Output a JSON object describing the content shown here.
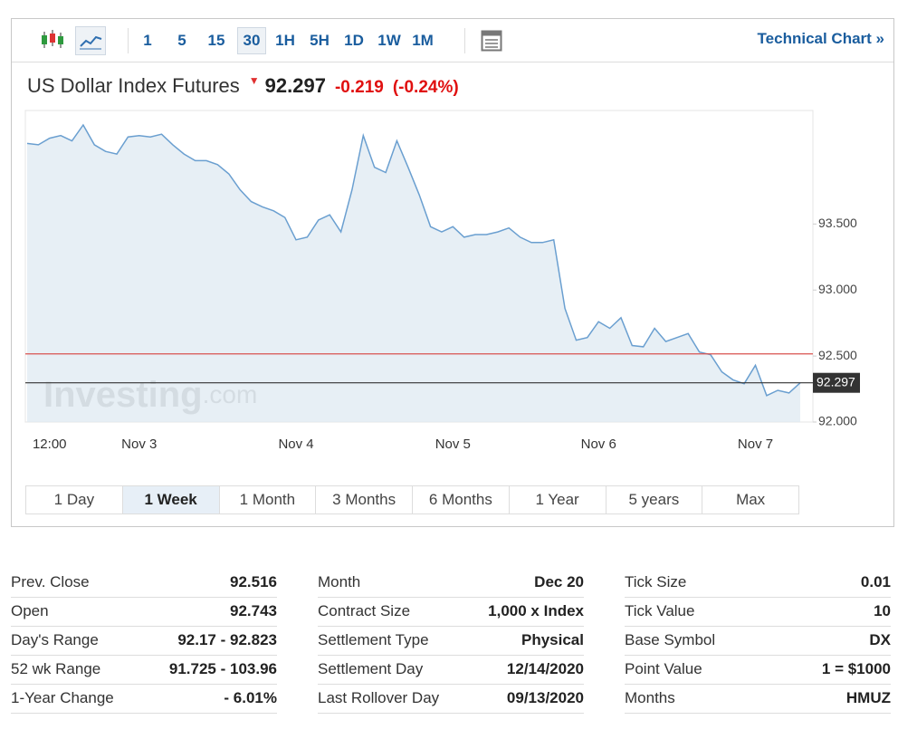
{
  "toolbar": {
    "intervals": [
      "1",
      "5",
      "15",
      "30",
      "1H",
      "5H",
      "1D",
      "1W",
      "1M"
    ],
    "link": "Technical Chart »"
  },
  "header": {
    "title": "US Dollar Index Futures",
    "price": "92.297",
    "change": "-0.219",
    "change_percent": "(-0.24%)"
  },
  "chart_data": {
    "type": "line",
    "categories": [
      null,
      null,
      "12:00",
      null,
      null,
      null,
      null,
      null,
      null,
      null,
      "Nov 3",
      null,
      null,
      null,
      null,
      null,
      null,
      null,
      null,
      null,
      null,
      null,
      null,
      null,
      "Nov 4",
      null,
      null,
      null,
      null,
      null,
      null,
      null,
      null,
      null,
      null,
      null,
      null,
      null,
      "Nov 5",
      null,
      null,
      null,
      null,
      null,
      null,
      null,
      null,
      null,
      null,
      null,
      null,
      "Nov 6",
      null,
      null,
      null,
      null,
      null,
      null,
      null,
      null,
      null,
      null,
      null,
      null,
      null,
      "Nov 7",
      null,
      null,
      null,
      null
    ],
    "series": [
      {
        "name": "US Dollar Index Futures",
        "color": "#6a9fd0",
        "values": [
          94.11,
          94.1,
          94.15,
          94.17,
          94.13,
          94.25,
          94.1,
          94.05,
          94.03,
          94.16,
          94.17,
          94.16,
          94.18,
          94.1,
          94.03,
          93.98,
          93.98,
          93.95,
          93.88,
          93.76,
          93.67,
          93.63,
          93.6,
          93.55,
          93.38,
          93.4,
          93.53,
          93.57,
          93.44,
          93.76,
          94.17,
          93.93,
          93.89,
          94.13,
          93.93,
          93.72,
          93.48,
          93.44,
          93.48,
          93.4,
          93.42,
          93.42,
          93.44,
          93.47,
          93.4,
          93.36,
          93.36,
          93.38,
          92.86,
          92.62,
          92.64,
          92.76,
          92.71,
          92.79,
          92.58,
          92.57,
          92.71,
          92.61,
          92.64,
          92.67,
          92.53,
          92.51,
          92.38,
          92.32,
          92.29,
          92.43,
          92.2,
          92.24,
          92.22,
          92.297
        ]
      }
    ],
    "reference_lines": [
      {
        "value": 92.516,
        "color": "#d9534f"
      },
      {
        "value": 92.297,
        "color": "#333333",
        "label": "92.297"
      }
    ],
    "ylim": [
      92.0,
      94.36
    ],
    "yticks": [
      {
        "value": 92.0,
        "label": "92.000"
      },
      {
        "value": 92.5,
        "label": "92.500"
      },
      {
        "value": 93.0,
        "label": "93.000"
      },
      {
        "value": 93.5,
        "label": "93.500"
      }
    ],
    "watermark": [
      "Investing",
      ".com"
    ]
  },
  "tabs": [
    "1 Day",
    "1 Week",
    "1 Month",
    "3 Months",
    "6 Months",
    "1 Year",
    "5 years",
    "Max"
  ],
  "stats": [
    [
      {
        "label": "Prev. Close",
        "value": "92.516"
      },
      {
        "label": "Open",
        "value": "92.743"
      },
      {
        "label": "Day's Range",
        "value": "92.17 - 92.823"
      },
      {
        "label": "52 wk Range",
        "value": "91.725 - 103.96"
      },
      {
        "label": "1-Year Change",
        "value": "- 6.01%"
      }
    ],
    [
      {
        "label": "Month",
        "value": "Dec 20"
      },
      {
        "label": "Contract Size",
        "value": "1,000 x Index"
      },
      {
        "label": "Settlement Type",
        "value": "Physical"
      },
      {
        "label": "Settlement Day",
        "value": "12/14/2020"
      },
      {
        "label": "Last Rollover Day",
        "value": "09/13/2020"
      }
    ],
    [
      {
        "label": "Tick Size",
        "value": "0.01"
      },
      {
        "label": "Tick Value",
        "value": "10"
      },
      {
        "label": "Base Symbol",
        "value": "DX"
      },
      {
        "label": "Point Value",
        "value": "1 = $1000"
      },
      {
        "label": "Months",
        "value": "HMUZ"
      }
    ]
  ]
}
